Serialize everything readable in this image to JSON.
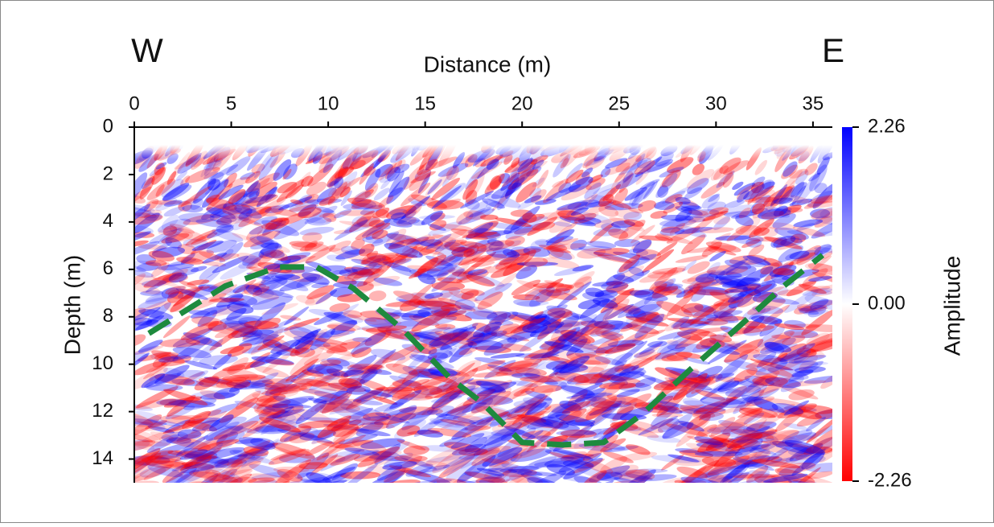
{
  "chart_data": {
    "type": "line",
    "annotations": [
      "W",
      "E"
    ],
    "x_label": "Distance (m)",
    "y_label": "Depth (m)",
    "xlim": [
      0,
      36
    ],
    "xticks": [
      0,
      5,
      10,
      15,
      20,
      25,
      30,
      35
    ],
    "ylim": [
      0,
      15
    ],
    "yticks": [
      0,
      2,
      4,
      6,
      8,
      10,
      12,
      14
    ],
    "y_inverted": true,
    "x_axis_position": "top",
    "series": [
      {
        "color": "#1e8a3e",
        "dashed": true,
        "x": [
          0.75,
          4.7,
          7.4,
          9.4,
          11.3,
          13.8,
          16.3,
          17.9,
          20.0,
          22.1,
          24.2,
          26.2,
          28.7,
          31.2,
          33.5,
          35.5
        ],
        "values": [
          8.7,
          6.7,
          5.9,
          5.9,
          6.8,
          8.5,
          10.6,
          11.6,
          13.3,
          13.4,
          13.3,
          12.1,
          10.2,
          8.4,
          6.7,
          5.4
        ]
      }
    ],
    "colorbar": {
      "label": "Amplitude",
      "lim": [
        -2.26,
        2.26
      ],
      "ticks": [
        2.26,
        {
          "value": 0,
          "label": "0.00"
        },
        -2.26
      ],
      "colors": [
        "#ff0000",
        "#ffffff",
        "#0000ff"
      ]
    }
  }
}
